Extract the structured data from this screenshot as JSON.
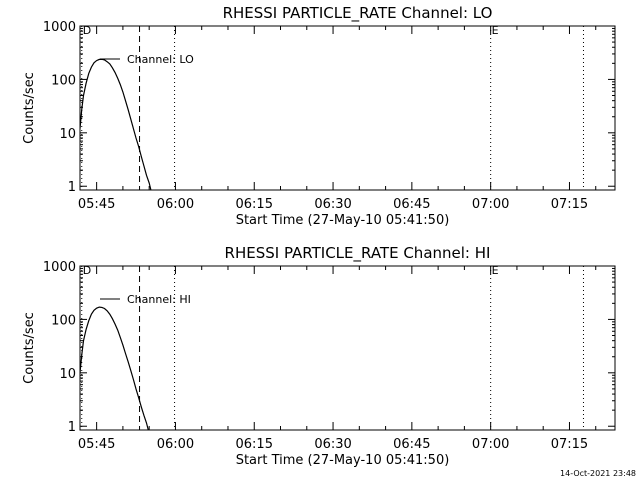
{
  "footer": {
    "timestamp": "14-Oct-2021 23:48"
  },
  "chart_data": [
    {
      "type": "line",
      "title": "RHESSI PARTICLE_RATE Channel: LO",
      "xlabel": "Start Time (27-May-10 05:41:50)",
      "ylabel": "Counts/sec",
      "x_unit": "minutes",
      "xlim": [
        "05:41:50",
        "07:23:40"
      ],
      "ylim": [
        0.85,
        1000
      ],
      "y_scale": "log",
      "x_ticks": [
        "05:45",
        "06:00",
        "06:15",
        "06:30",
        "06:45",
        "07:00",
        "07:15"
      ],
      "y_ticks": [
        "1",
        "10",
        "100",
        "1000"
      ],
      "legend": {
        "label": "Channel: LO",
        "placement": "top-left"
      },
      "markers": [
        {
          "label": "D",
          "time": "05:42:10",
          "style": "dotted"
        },
        {
          "label": "",
          "time": "05:53:10",
          "style": "dashed"
        },
        {
          "label": "",
          "time": "05:59:50",
          "style": "dotted"
        },
        {
          "label": "E",
          "time": "07:00:00",
          "style": "dotted"
        },
        {
          "label": "",
          "time": "07:17:40",
          "style": "dotted"
        }
      ],
      "series": [
        {
          "name": "Channel: LO",
          "points": [
            [
              "05:41:50",
              12
            ],
            [
              "05:42:10",
              28
            ],
            [
              "05:42:30",
              50
            ],
            [
              "05:43:00",
              85
            ],
            [
              "05:43:30",
              130
            ],
            [
              "05:44:00",
              170
            ],
            [
              "05:44:30",
              205
            ],
            [
              "05:45:00",
              225
            ],
            [
              "05:45:30",
              237
            ],
            [
              "05:46:00",
              238
            ],
            [
              "05:46:30",
              232
            ],
            [
              "05:47:00",
              215
            ],
            [
              "05:47:30",
              195
            ],
            [
              "05:48:00",
              165
            ],
            [
              "05:48:30",
              135
            ],
            [
              "05:49:00",
              105
            ],
            [
              "05:49:30",
              80
            ],
            [
              "05:50:00",
              58
            ],
            [
              "05:50:30",
              40
            ],
            [
              "05:51:00",
              27
            ],
            [
              "05:51:30",
              18
            ],
            [
              "05:52:00",
              12
            ],
            [
              "05:52:30",
              8
            ],
            [
              "05:53:00",
              5.5
            ],
            [
              "05:53:30",
              3.6
            ],
            [
              "05:54:00",
              2.4
            ],
            [
              "05:54:30",
              1.6
            ],
            [
              "05:55:00",
              1.15
            ],
            [
              "05:55:20",
              0.85
            ]
          ]
        }
      ]
    },
    {
      "type": "line",
      "title": "RHESSI PARTICLE_RATE Channel: HI",
      "xlabel": "Start Time (27-May-10 05:41:50)",
      "ylabel": "Counts/sec",
      "x_unit": "minutes",
      "xlim": [
        "05:41:50",
        "07:23:40"
      ],
      "ylim": [
        0.85,
        1000
      ],
      "y_scale": "log",
      "x_ticks": [
        "05:45",
        "06:00",
        "06:15",
        "06:30",
        "06:45",
        "07:00",
        "07:15"
      ],
      "y_ticks": [
        "1",
        "10",
        "100",
        "1000"
      ],
      "legend": {
        "label": "Channel: HI",
        "placement": "top-left"
      },
      "markers": [
        {
          "label": "D",
          "time": "05:42:10",
          "style": "dotted"
        },
        {
          "label": "",
          "time": "05:53:10",
          "style": "dashed"
        },
        {
          "label": "",
          "time": "05:59:50",
          "style": "dotted"
        },
        {
          "label": "E",
          "time": "07:00:00",
          "style": "dotted"
        },
        {
          "label": "",
          "time": "07:17:40",
          "style": "dotted"
        }
      ],
      "series": [
        {
          "name": "Channel: HI",
          "points": [
            [
              "05:41:50",
              10
            ],
            [
              "05:42:10",
              22
            ],
            [
              "05:42:30",
              40
            ],
            [
              "05:43:00",
              65
            ],
            [
              "05:43:30",
              95
            ],
            [
              "05:44:00",
              125
            ],
            [
              "05:44:30",
              148
            ],
            [
              "05:45:00",
              162
            ],
            [
              "05:45:30",
              170
            ],
            [
              "05:46:00",
              168
            ],
            [
              "05:46:30",
              160
            ],
            [
              "05:47:00",
              145
            ],
            [
              "05:47:30",
              125
            ],
            [
              "05:48:00",
              103
            ],
            [
              "05:48:30",
              82
            ],
            [
              "05:49:00",
              63
            ],
            [
              "05:49:30",
              46
            ],
            [
              "05:50:00",
              33
            ],
            [
              "05:50:30",
              23
            ],
            [
              "05:51:00",
              16
            ],
            [
              "05:51:30",
              11
            ],
            [
              "05:52:00",
              7.5
            ],
            [
              "05:52:30",
              5
            ],
            [
              "05:53:00",
              3.4
            ],
            [
              "05:53:30",
              2.3
            ],
            [
              "05:54:00",
              1.6
            ],
            [
              "05:54:30",
              1.15
            ],
            [
              "05:54:50",
              0.85
            ]
          ]
        }
      ]
    }
  ]
}
